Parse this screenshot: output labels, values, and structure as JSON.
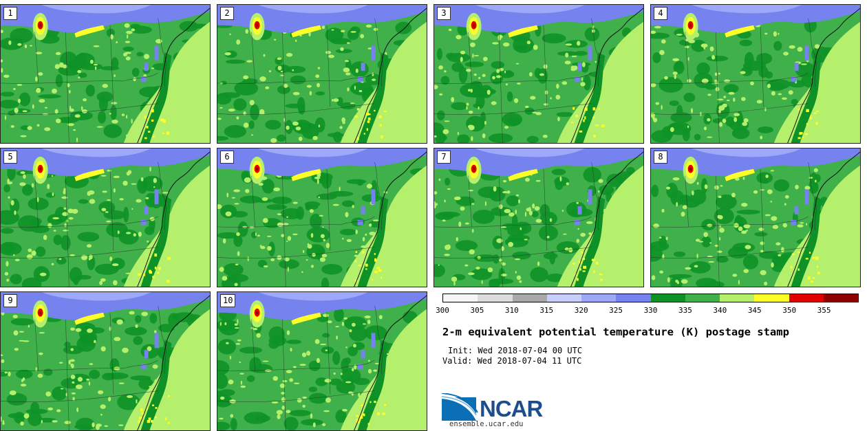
{
  "panels": [
    "1",
    "2",
    "3",
    "4",
    "5",
    "6",
    "7",
    "8",
    "9",
    "10"
  ],
  "colorbar": {
    "ticks": [
      "300",
      "305",
      "310",
      "315",
      "320",
      "325",
      "330",
      "335",
      "340",
      "345",
      "350",
      "355"
    ],
    "colors": [
      "#f6f6f6",
      "#dcdcdc",
      "#a9a9a9",
      "#c8cfff",
      "#9da8f8",
      "#7683ef",
      "#0e9227",
      "#3fb04a",
      "#b4f06c",
      "#ffff28",
      "#e10000",
      "#8c0000"
    ]
  },
  "title": "2-m equivalent potential temperature (K) postage stamp",
  "init": "Init: Wed 2018-07-04 00 UTC",
  "valid": "Valid: Wed 2018-07-04 11 UTC",
  "logo": {
    "text": "NCAR",
    "site": "ensemble.ucar.edu"
  }
}
